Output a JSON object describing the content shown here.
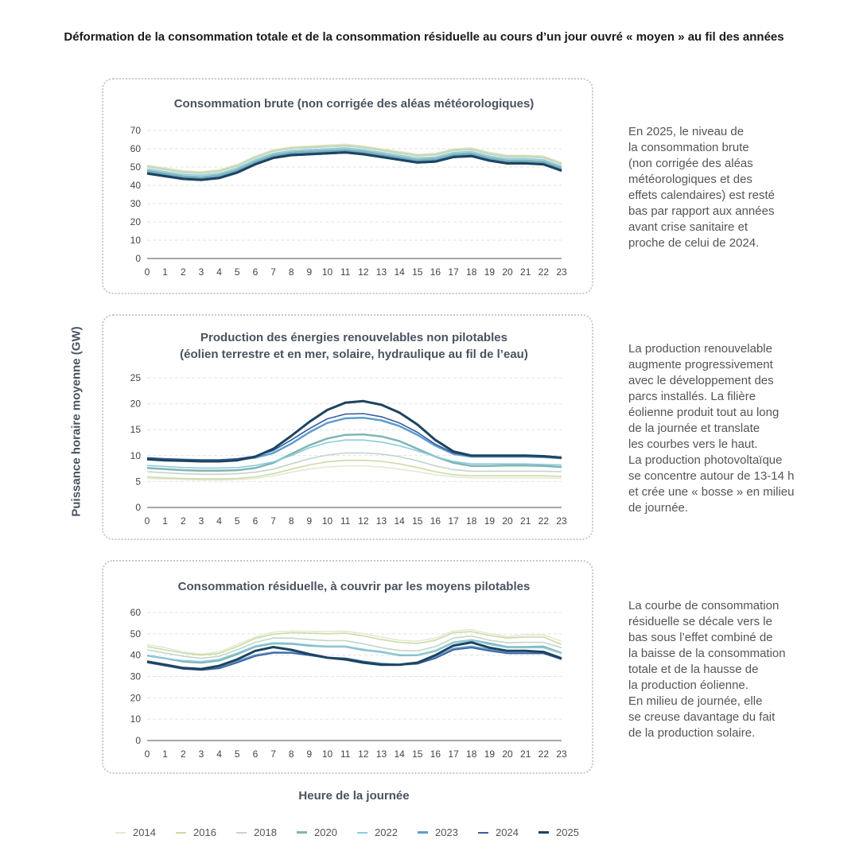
{
  "title": "Déformation de la consommation totale et de la consommation résiduelle au cours d’un jour ouvré « moyen » au fil des années",
  "y_axis_label": "Puissance horaire moyenne (GW)",
  "x_axis_label": "Heure de la journée",
  "notes": [
    "En 2025, le niveau de\nla consommation brute\n(non corrigée des aléas\nmétéorologiques et des\neffets calendaires) est resté\nbas par rapport aux années\navant crise sanitaire et\nproche de celui de 2024.",
    "La production renouvelable\naugmente progressivement\navec le développement des\nparcs installés. La filière\néolienne produit tout au long\nde la journée et translate\nles courbes vers le haut.\nLa production photovoltaïque\nse concentre autour de 13-14 h\net crée une « bosse » en milieu\nde journée.",
    "La courbe de consommation\nrésiduelle se décale vers le\nbas sous l’effet combiné de\nla baisse de la consommation\ntotale et de la hausse de\nla production éolienne.\nEn milieu de journée, elle\nse creuse davantage du fait\nde la production solaire."
  ],
  "legend": [
    {
      "name": "2014",
      "color": "#e3ead3"
    },
    {
      "name": "2016",
      "color": "#cddba6"
    },
    {
      "name": "2018",
      "color": "#c3d5cb"
    },
    {
      "name": "2020",
      "color": "#7fb6b1"
    },
    {
      "name": "2022",
      "color": "#8ccbe0"
    },
    {
      "name": "2023",
      "color": "#5e9dcd"
    },
    {
      "name": "2024",
      "color": "#3a5d9c"
    },
    {
      "name": "2025",
      "color": "#1d4360"
    }
  ],
  "chart_data": [
    {
      "type": "line",
      "title": "Consommation brute (non corrigée des aléas météorologiques)",
      "x": [
        0,
        1,
        2,
        3,
        4,
        5,
        6,
        7,
        8,
        9,
        10,
        11,
        12,
        13,
        14,
        15,
        16,
        17,
        18,
        19,
        20,
        21,
        22,
        23
      ],
      "ylim": [
        0,
        70
      ],
      "ystep": 10,
      "grid": true,
      "series": [
        {
          "name": "2014",
          "values": [
            51,
            49.5,
            48,
            47.5,
            48.5,
            51.5,
            56,
            59.5,
            61,
            61.5,
            62,
            62.5,
            61.5,
            60,
            58.5,
            57,
            57.5,
            60,
            60.5,
            58,
            56.5,
            56.5,
            56,
            52.5
          ]
        },
        {
          "name": "2016",
          "values": [
            50.5,
            49,
            47.5,
            47,
            48,
            51,
            55.5,
            59,
            60.5,
            61,
            61.5,
            62,
            61,
            59.5,
            58,
            56.5,
            57,
            59.5,
            60,
            57.5,
            56,
            56,
            55.5,
            52
          ]
        },
        {
          "name": "2018",
          "values": [
            50,
            48.5,
            47,
            46.5,
            47.5,
            50.5,
            55,
            58.5,
            60,
            60.5,
            61,
            61.5,
            60.5,
            59,
            57.5,
            56,
            56.5,
            59,
            59.5,
            57,
            55.5,
            55.5,
            55,
            51.5
          ]
        },
        {
          "name": "2020",
          "values": [
            48,
            46.5,
            45,
            44.5,
            45.5,
            48.5,
            53,
            56.5,
            58,
            58.5,
            59,
            59.5,
            58.5,
            57,
            55.5,
            54,
            54.5,
            57,
            57.5,
            55,
            53.5,
            53.5,
            53,
            49.5
          ]
        },
        {
          "name": "2022",
          "values": [
            49,
            47.5,
            46,
            45.5,
            46.5,
            49.5,
            54,
            57.5,
            59,
            59.5,
            60,
            60.5,
            59.5,
            58,
            56.5,
            55,
            55.5,
            58,
            58.5,
            56,
            54.5,
            54.5,
            54,
            50.5
          ]
        },
        {
          "name": "2023",
          "values": [
            47,
            45.5,
            44,
            43.5,
            44.5,
            47.5,
            52,
            55.5,
            57,
            57.5,
            58,
            58.5,
            57.5,
            56,
            54.5,
            53,
            53.5,
            56,
            56.5,
            54,
            52.5,
            52.5,
            52,
            48.5
          ]
        },
        {
          "name": "2024",
          "values": [
            46.2,
            44.7,
            43.2,
            42.7,
            43.7,
            46.7,
            51.2,
            54.7,
            56.2,
            56.7,
            57.2,
            57.7,
            56.7,
            55.2,
            53.7,
            52.2,
            52.7,
            55.2,
            55.7,
            53.2,
            51.7,
            51.7,
            51.2,
            47.7
          ]
        },
        {
          "name": "2025",
          "values": [
            46.5,
            45,
            43.5,
            43,
            44,
            47,
            51.5,
            55,
            56.5,
            57,
            57.5,
            58,
            57,
            55.5,
            54,
            52.5,
            53,
            55.5,
            56,
            53.5,
            52,
            52,
            51.5,
            48
          ]
        }
      ]
    },
    {
      "type": "line",
      "title": "Production des énergies renouvelables non pilotables\n(éolien terrestre et en mer, solaire, hydraulique au fil de l’eau)",
      "x": [
        0,
        1,
        2,
        3,
        4,
        5,
        6,
        7,
        8,
        9,
        10,
        11,
        12,
        13,
        14,
        15,
        16,
        17,
        18,
        19,
        20,
        21,
        22,
        23
      ],
      "ylim": [
        0,
        25
      ],
      "ystep": 5,
      "grid": true,
      "series": [
        {
          "name": "2014",
          "values": [
            5.6,
            5.5,
            5.4,
            5.3,
            5.3,
            5.4,
            5.6,
            6.1,
            6.8,
            7.4,
            7.8,
            8,
            8,
            7.8,
            7.4,
            6.9,
            6.3,
            5.9,
            5.7,
            5.7,
            5.7,
            5.7,
            5.7,
            5.6
          ]
        },
        {
          "name": "2016",
          "values": [
            5.9,
            5.7,
            5.6,
            5.5,
            5.5,
            5.6,
            5.9,
            6.5,
            7.4,
            8.2,
            8.8,
            9.1,
            9.1,
            8.9,
            8.4,
            7.7,
            6.9,
            6.3,
            6.1,
            6.1,
            6.1,
            6.1,
            6.1,
            6
          ]
        },
        {
          "name": "2018",
          "values": [
            6.9,
            6.7,
            6.5,
            6.4,
            6.4,
            6.5,
            6.8,
            7.4,
            8.4,
            9.4,
            10.1,
            10.5,
            10.5,
            10.3,
            9.8,
            9,
            8,
            7.3,
            7,
            7,
            7,
            7,
            7,
            6.9
          ]
        },
        {
          "name": "2020",
          "values": [
            7.6,
            7.4,
            7.2,
            7.1,
            7.1,
            7.2,
            7.6,
            8.6,
            10.3,
            12,
            13.3,
            14,
            14.1,
            13.7,
            12.8,
            11.3,
            9.8,
            8.6,
            8,
            8,
            8.1,
            8.1,
            8,
            7.8
          ]
        },
        {
          "name": "2022",
          "values": [
            8.1,
            7.9,
            7.7,
            7.6,
            7.6,
            7.7,
            8.1,
            8.8,
            10,
            11.5,
            12.5,
            13,
            13,
            12.6,
            11.9,
            10.9,
            9.8,
            8.9,
            8.4,
            8.4,
            8.4,
            8.4,
            8.3,
            8.2
          ]
        },
        {
          "name": "2023",
          "values": [
            9.4,
            9.2,
            9.1,
            9,
            9,
            9.2,
            9.6,
            10.5,
            12.3,
            14.5,
            16.3,
            17.2,
            17.3,
            16.8,
            15.7,
            14,
            11.9,
            10.3,
            9.8,
            9.8,
            9.8,
            9.8,
            9.7,
            9.5
          ]
        },
        {
          "name": "2024",
          "values": [
            9.6,
            9.4,
            9.3,
            9.2,
            9.2,
            9.4,
            9.9,
            11,
            13,
            15.2,
            17.1,
            18,
            18.1,
            17.5,
            16.3,
            14.5,
            12.2,
            10.5,
            9.9,
            9.9,
            9.9,
            9.9,
            9.8,
            9.6
          ]
        },
        {
          "name": "2025",
          "values": [
            9.3,
            9.1,
            9,
            8.9,
            8.9,
            9.1,
            9.8,
            11.3,
            13.8,
            16.5,
            18.8,
            20.2,
            20.5,
            19.8,
            18.3,
            16,
            13,
            10.8,
            10,
            10,
            10,
            10,
            9.9,
            9.6
          ]
        }
      ]
    },
    {
      "type": "line",
      "title": "Consommation résiduelle, à couvrir par les moyens pilotables",
      "x": [
        0,
        1,
        2,
        3,
        4,
        5,
        6,
        7,
        8,
        9,
        10,
        11,
        12,
        13,
        14,
        15,
        16,
        17,
        18,
        19,
        20,
        21,
        22,
        23
      ],
      "ylim": [
        0,
        60
      ],
      "ystep": 10,
      "grid": true,
      "series": [
        {
          "name": "2014",
          "values": [
            45,
            43.5,
            41.5,
            40.5,
            41.5,
            45,
            48.5,
            50.8,
            51.3,
            51.2,
            51,
            51.2,
            50,
            48.5,
            47,
            46.5,
            48,
            51.3,
            52,
            50,
            48.7,
            49.5,
            49.5,
            46.5
          ]
        },
        {
          "name": "2016",
          "values": [
            44,
            42.5,
            41,
            40,
            40.8,
            44,
            47.8,
            49.8,
            50.5,
            50.3,
            50,
            50.3,
            49,
            47.3,
            46,
            45.5,
            47,
            50.5,
            51,
            49.2,
            48,
            48.5,
            48.5,
            45
          ]
        },
        {
          "name": "2018",
          "values": [
            42.5,
            41,
            39.5,
            38.5,
            39.5,
            42.5,
            46,
            48,
            48,
            47.3,
            46.8,
            46.8,
            45.3,
            43.5,
            42.2,
            42,
            44,
            48,
            49,
            47,
            45.8,
            46,
            46,
            43.5
          ]
        },
        {
          "name": "2020",
          "values": [
            39.8,
            38.5,
            37,
            36.5,
            37.5,
            40.5,
            44,
            45.5,
            45.3,
            44.5,
            44,
            44,
            42.5,
            41.5,
            40,
            40,
            42,
            46,
            47,
            45.5,
            43.8,
            43.8,
            44,
            41
          ]
        },
        {
          "name": "2022",
          "values": [
            40,
            38.5,
            37.5,
            37,
            38,
            41,
            44.3,
            45.8,
            45.6,
            44.8,
            44,
            44,
            42.8,
            41.3,
            40.2,
            40,
            42.2,
            46,
            47,
            45,
            43.5,
            43.5,
            43.5,
            40.8
          ]
        },
        {
          "name": "2023",
          "values": [
            37,
            35.5,
            34,
            33.5,
            34,
            37,
            40,
            41.3,
            41.2,
            40,
            38.8,
            38.5,
            37,
            36,
            35.5,
            36,
            39,
            43,
            44,
            42.5,
            41,
            41,
            41,
            38.3
          ]
        },
        {
          "name": "2024",
          "values": [
            36.5,
            35,
            33.5,
            33,
            33.8,
            36.5,
            39.5,
            41,
            41,
            40,
            38.8,
            38.5,
            37,
            35.8,
            35.5,
            36,
            38.5,
            42.5,
            43.5,
            42,
            40.8,
            40.8,
            40.8,
            38
          ]
        },
        {
          "name": "2025",
          "values": [
            37,
            35.5,
            34,
            33.5,
            35,
            38,
            42,
            43.8,
            42.5,
            40.5,
            38.8,
            38,
            36.5,
            35.5,
            35.5,
            36.5,
            40,
            44.5,
            46,
            43.5,
            42,
            42,
            41.5,
            38.5
          ]
        }
      ]
    }
  ]
}
